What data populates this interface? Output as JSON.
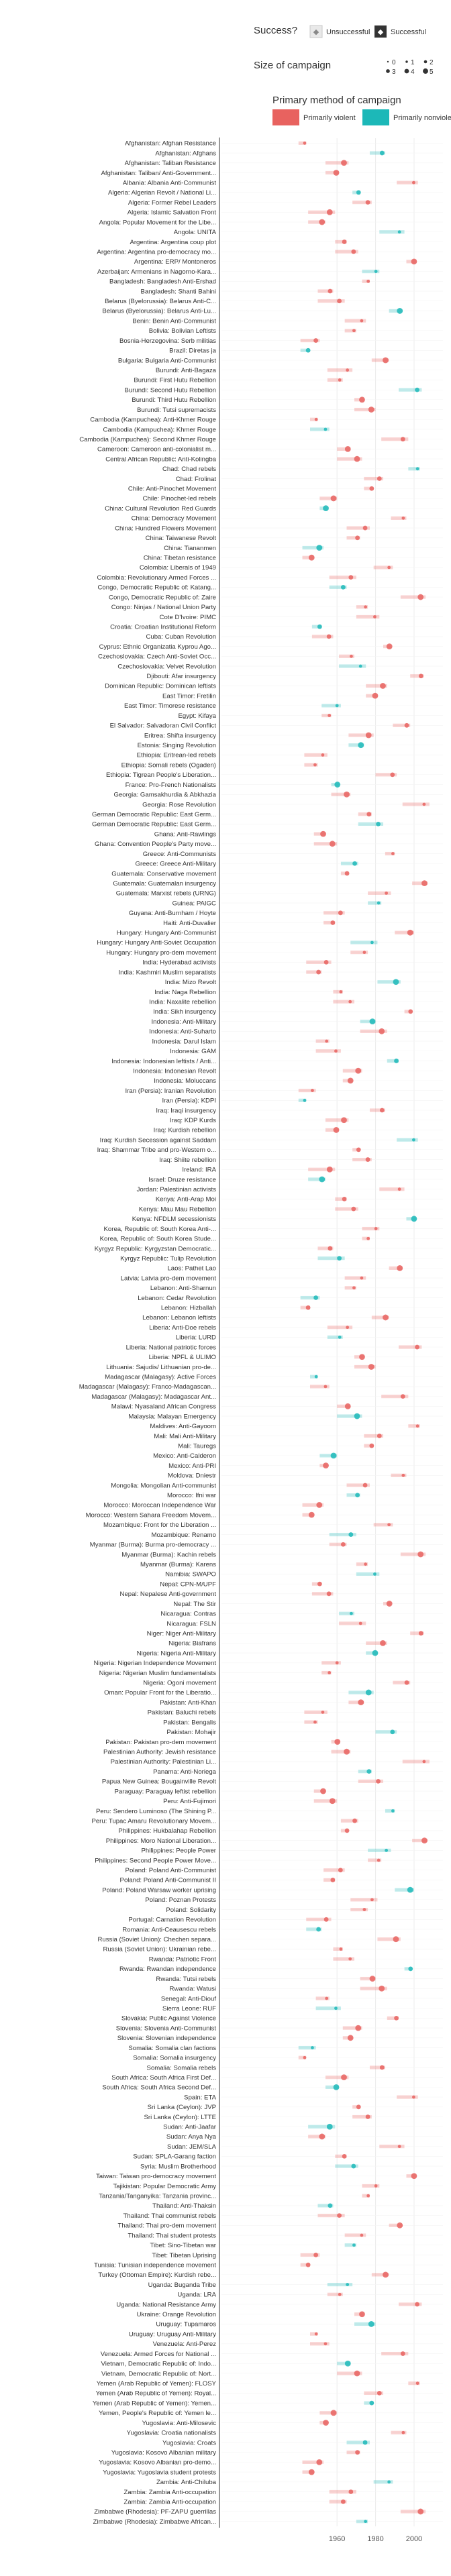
{
  "chart_data": {
    "type": "timeline",
    "title": "",
    "xlabel": "",
    "ylabel": "",
    "xlim": [
      1900,
      2015
    ],
    "x_ticks": [
      1960,
      1980,
      2000
    ],
    "legend": {
      "success_title": "Success?",
      "success_items": [
        "Unsuccessful",
        "Successful"
      ],
      "size_title": "Size of campaign",
      "size_items": [
        "0",
        "1",
        "2",
        "3",
        "4",
        "5"
      ],
      "method_title": "Primary method of campaign",
      "method_items": [
        "Primarily violent",
        "Primarily nonviolent"
      ],
      "colors": {
        "violent": "#e8625f",
        "nonviolent": "#1cb8b8",
        "unsuccessful": "#e9e9e9",
        "successful": "#333333"
      }
    },
    "campaigns": [
      "Afghanistan: Afghan Resistance",
      "Afghanistan: Afghans",
      "Afghanistan: Taliban Resistance",
      "Afghanistan: Taliban/ Anti-Government...",
      "Albania: Albania Anti-Communist",
      "Algeria: Algerian Revolt / National Li...",
      "Algeria: Former Rebel Leaders",
      "Algeria: Islamic Salvation Front",
      "Angola: Popular Movement for the Libe...",
      "Angola: UNITA",
      "Argentina: Argentina coup plot",
      "Argentina: Argentina pro-democracy mo...",
      "Argentina: ERP/ Montoneros",
      "Azerbaijan: Armenians in Nagorno-Kara...",
      "Bangladesh: Bangladesh Anti-Ershad",
      "Bangladesh: Shanti Bahini",
      "Belarus (Byelorussia): Belarus Anti-C...",
      "Belarus (Byelorussia): Belarus Anti-Lu...",
      "Benin: Benin Anti-Communist",
      "Bolivia: Bolivian Leftists",
      "Bosnia-Herzegovina: Serb militias",
      "Brazil: Diretas ja",
      "Bulgaria: Bulgaria Anti-Communist",
      "Burundi: Anti-Bagaza",
      "Burundi: First Hutu Rebellion",
      "Burundi: Second Hutu Rebellion",
      "Burundi: Third Hutu Rebellion",
      "Burundi: Tutsi supremacists",
      "Cambodia (Kampuchea): Anti-Khmer Rouge",
      "Cambodia (Kampuchea): Khmer Rouge",
      "Cambodia (Kampuchea): Second Khmer Rouge",
      "Cameroon: Cameroon anti-colonialist m...",
      "Central African Republic: Anti-Kolingba",
      "Chad: Chad rebels",
      "Chad: Frolinat",
      "Chile: Anti-Pinochet Movement",
      "Chile: Pinochet-led rebels",
      "China: Cultural Revolution Red Guards",
      "China: Democracy Movement",
      "China: Hundred Flowers Movement",
      "China: Taiwanese Revolt",
      "China: Tiananmen",
      "China: Tibetan resistance",
      "Colombia: Liberals of 1949",
      "Colombia: Revolutionary Armed Forces ...",
      "Congo, Democratic Republic of: Katang...",
      "Congo, Democratic Republic of: Zaire",
      "Congo: Ninjas / National Union Party",
      "Cote D'Ivoire: PIMC",
      "Croatia: Croatian Institutional Reform",
      "Cuba: Cuban Revolution",
      "Cyprus: Ethnic Organizatia Kyprou Ago...",
      "Czechoslovakia: Czech Anti-Soviet Occ...",
      "Czechoslovakia: Velvet Revolution",
      "Djibouti: Afar insurgency",
      "Dominican Republic: Dominican leftists",
      "East Timor: Fretilin",
      "East Timor: Timorese resistance",
      "Egypt: Kifaya",
      "El Salvador: Salvadoran Civil Conflict",
      "Eritrea: Shifta insurgency",
      "Estonia: Singing Revolution",
      "Ethiopia: Eritrean-led rebels",
      "Ethiopia: Somali rebels (Ogaden)",
      "Ethiopia: Tigrean People's Liberation...",
      "France: Pro-French Nationalists",
      "Georgia: Gamsakhurdia & Abkhazia",
      "Georgia: Rose Revolution",
      "German Democratic Republic: East Germ...",
      "German Democratic Republic: East Germ...",
      "Ghana: Anti-Rawlings",
      "Ghana: Convention People's Party move...",
      "Greece: Anti-Communists",
      "Greece: Greece Anti-Military",
      "Guatemala: Conservative movement",
      "Guatemala: Guatemalan insurgency",
      "Guatemala: Marxist rebels (URNG)",
      "Guinea: PAIGC",
      "Guyana: Anti-Burnham / Hoyte",
      "Haiti: Anti-Duvalier",
      "Hungary: Hungary Anti-Communist",
      "Hungary: Hungary Anti-Soviet Occupation",
      "Hungary: Hungary pro-dem movement",
      "India: Hyderabad activists",
      "India: Kashmiri Muslim separatists",
      "India: Mizo Revolt",
      "India: Naga Rebellion",
      "India: Naxalite rebellion",
      "India: Sikh insurgency",
      "Indonesia: Anti-Military",
      "Indonesia: Anti-Suharto",
      "Indonesia: Darul Islam",
      "Indonesia: GAM",
      "Indonesia: Indonesian leftists / Anti...",
      "Indonesia: Indonesian Revolt",
      "Indonesia: Moluccans",
      "Iran (Persia): Iranian Revolution",
      "Iran (Persia): KDPI",
      "Iraq: Iraqi insurgency",
      "Iraq: KDP Kurds",
      "Iraq: Kurdish rebellion",
      "Iraq: Kurdish Secession against Saddam",
      "Iraq: Shammar Tribe and pro-Western o...",
      "Iraq: Shiite rebellion",
      "Ireland: IRA",
      "Israel: Druze resistance",
      "Jordan: Palestinian activists",
      "Kenya: Anti-Arap Moi",
      "Kenya: Mau Mau Rebellion",
      "Kenya: NFDLM secessionists",
      "Korea, Republic of: South Korea Anti-...",
      "Korea, Republic of: South Korea Stude...",
      "Kyrgyz Republic: Kyrgyzstan Democratic...",
      "Kyrgyz Republic: Tulip Revolution",
      "Laos: Pathet Lao",
      "Latvia: Latvia pro-dem movement",
      "Lebanon: Anti-Sharnun",
      "Lebanon: Cedar Revolution",
      "Lebanon: Hizballah",
      "Lebanon: Lebanon leftists",
      "Liberia: Anti-Doe rebels",
      "Liberia: LURD",
      "Liberia: National patriotic forces",
      "Liberia: NPFL & ULIMO",
      "Lithuania: Sajudis/ Lithuanian pro-de...",
      "Madagascar (Malagasy): Active Forces",
      "Madagascar (Malagasy): Franco-Madagascan...",
      "Madagascar (Malagasy): Madagascar Ant...",
      "Malawi: Nyasaland African Congress",
      "Malaysia: Malayan Emergency",
      "Maldives: Anti-Gayoom",
      "Mali: Mali Anti-Military",
      "Mali: Tauregs",
      "Mexico: Anti-Calderon",
      "Mexico: Anti-PRI",
      "Moldova: Dniestr",
      "Mongolia: Mongolian Anti-communist",
      "Morocco: Ifni war",
      "Morocco: Moroccan Independence War",
      "Morocco: Western Sahara Freedom Movem...",
      "Mozambique: Front for the Liberation ...",
      "Mozambique: Renamo",
      "Myanmar (Burma): Burma pro-democracy ...",
      "Myanmar (Burma): Kachin rebels",
      "Myanmar (Burma): Karens",
      "Namibia: SWAPO",
      "Nepal: CPN-M/UPF",
      "Nepal: Nepalese Anti-government",
      "Nepal: The Stir",
      "Nicaragua: Contras",
      "Nicaragua: FSLN",
      "Niger: Niger Anti-Military",
      "Nigeria: Biafrans",
      "Nigeria: Nigeria Anti-Military",
      "Nigeria: Nigerian Independence Movement",
      "Nigeria: Nigerian Muslim fundamentalists",
      "Nigeria: Ogoni movement",
      "Oman: Popular Front for the Liberatio...",
      "Pakistan: Anti-Khan",
      "Pakistan: Baluchi rebels",
      "Pakistan: Bengalis",
      "Pakistan: Mohajir",
      "Pakistan: Pakistan pro-dem movement",
      "Palestinian Authority: Jewish resistance",
      "Palestinian Authority: Palestinian Li...",
      "Panama: Anti-Noriega",
      "Papua New Guinea: Bougainville Revolt",
      "Paraguay: Paraguay leftist rebellion",
      "Peru: Anti-Fujimori",
      "Peru: Sendero Luminoso (The Shining P...",
      "Peru: Tupac Amaru Revolutionary Movem...",
      "Philippines: Hukbalahap Rebellion",
      "Philippines: Moro National Liberation...",
      "Philippines: People Power",
      "Philippines: Second People Power Move...",
      "Poland: Poland Anti-Communist",
      "Poland: Poland Anti-Communist II",
      "Poland: Poland Warsaw worker uprising",
      "Poland: Poznan Protests",
      "Poland: Solidarity",
      "Portugal: Carnation Revolution",
      "Romania: Anti-Ceausescu rebels",
      "Russia (Soviet Union): Chechen separa...",
      "Russia (Soviet Union): Ukrainian rebe...",
      "Rwanda: Patriotic Front",
      "Rwanda: Rwandan independence",
      "Rwanda: Tutsi rebels",
      "Rwanda: Watusi",
      "Senegal: Anti-Diouf",
      "Sierra Leone: RUF",
      "Slovakia: Public Against Violence",
      "Slovenia: Slovenia Anti-Communist",
      "Slovenia: Slovenian independence",
      "Somalia: Somalia clan factions",
      "Somalia: Somalia insurgency",
      "Somalia: Somalia rebels",
      "South Africa: South Africa First Def...",
      "South Africa: South Africa Second Def...",
      "Spain: ETA",
      "Sri Lanka (Ceylon): JVP",
      "Sri Lanka (Ceylon): LTTE",
      "Sudan: Anti-Jaafar",
      "Sudan: Anya Nya",
      "Sudan: JEM/SLA",
      "Sudan: SPLA-Garang faction",
      "Syria: Muslim Brotherhood",
      "Taiwan: Taiwan pro-democracy movement",
      "Tajikistan: Popular Democratic Army",
      "Tanzania/Tanganyika: Tanzania provinc...",
      "Thailand: Anti-Thaksin",
      "Thailand: Thai communist rebels",
      "Thailand: Thai pro-dem movement",
      "Thailand: Thai student protests",
      "Tibet: Sino-Tibetan war",
      "Tibet: Tibetan Uprising",
      "Tunisia: Tunisian independence movement",
      "Turkey (Ottoman Empire): Kurdish rebe...",
      "Uganda: Buganda Tribe",
      "Uganda: LRA",
      "Uganda: National Resistance Army",
      "Ukraine: Orange Revolution",
      "Uruguay: Tupamaros",
      "Uruguay: Uruguay Anti-Military",
      "Venezuela: Anti-Perez",
      "Venezuela: Armed Forces for National ...",
      "Vietnam, Democratic Republic of: Indo...",
      "Vietnam, Democratic Republic of: Nort...",
      "Yemen (Arab Republic of Yemen): FLOSY",
      "Yemen (Arab Republic of Yemen): Royal...",
      "Yemen (Arab Republic of Yemen): Yemen...",
      "Yemen, People's Republic of: Yemen le...",
      "Yugoslavia: Anti-Milosevic",
      "Yugoslavia: Croatia nationalists",
      "Yugoslavia: Croats",
      "Yugoslavia: Kosovo Albanian military",
      "Yugoslavia: Kosovo Albanian pro-demo...",
      "Yugoslavia: Yugoslavia student protests",
      "Zambia: Anti-Chiluba",
      "Zambia: Zambia Anti-occupation",
      "Zambia: Zambia Anti-occupation",
      "Zimbabwe (Rhodesia): PF-ZAPU guerrillas",
      "Zimbabwe (Rhodesia): Zimbabwe African..."
    ]
  }
}
